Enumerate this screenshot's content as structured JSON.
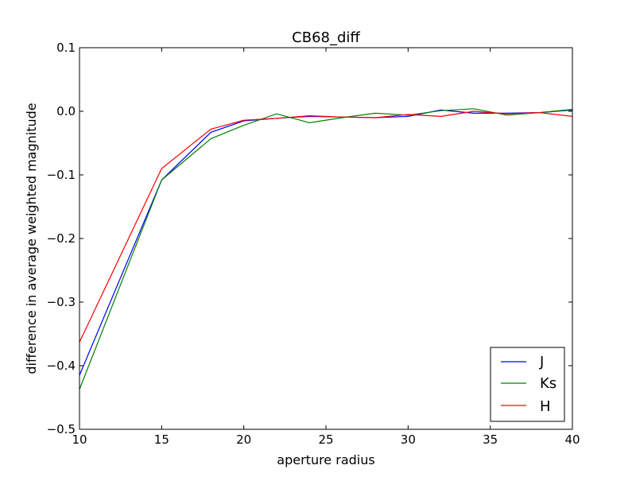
{
  "chart_data": {
    "type": "line",
    "title": "CB68_diff",
    "xlabel": "aperture radius",
    "ylabel": "difference in average weighted magnitude",
    "xlim": [
      10,
      40
    ],
    "ylim": [
      -0.5,
      0.1
    ],
    "xticks": [
      10,
      15,
      20,
      25,
      30,
      35,
      40
    ],
    "yticks": [
      0.1,
      0.0,
      -0.1,
      -0.2,
      -0.3,
      -0.4,
      -0.5
    ],
    "xtick_labels": [
      "10",
      "15",
      "20",
      "25",
      "30",
      "35",
      "40"
    ],
    "ytick_labels": [
      "0.1",
      "0.0",
      "−0.1",
      "−0.2",
      "−0.3",
      "−0.4",
      "−0.5"
    ],
    "grid": false,
    "legend_position": "lower-right",
    "x": [
      10,
      15,
      18,
      20,
      22,
      24,
      26,
      28,
      30,
      32,
      34,
      36,
      38,
      40
    ],
    "series": [
      {
        "name": "J",
        "color": "#0000ff",
        "values": [
          -0.415,
          -0.108,
          -0.033,
          -0.015,
          -0.011,
          -0.008,
          -0.009,
          -0.01,
          -0.008,
          0.002,
          -0.003,
          -0.003,
          -0.002,
          0.002
        ]
      },
      {
        "name": "Ks",
        "color": "#008000",
        "values": [
          -0.437,
          -0.108,
          -0.043,
          -0.022,
          -0.004,
          -0.018,
          -0.01,
          -0.003,
          -0.006,
          0.001,
          0.004,
          -0.006,
          -0.002,
          0.003
        ]
      },
      {
        "name": "H",
        "color": "#ff0000",
        "values": [
          -0.363,
          -0.09,
          -0.028,
          -0.014,
          -0.011,
          -0.007,
          -0.009,
          -0.01,
          -0.005,
          -0.008,
          0.0,
          -0.004,
          -0.002,
          -0.008
        ]
      }
    ]
  }
}
